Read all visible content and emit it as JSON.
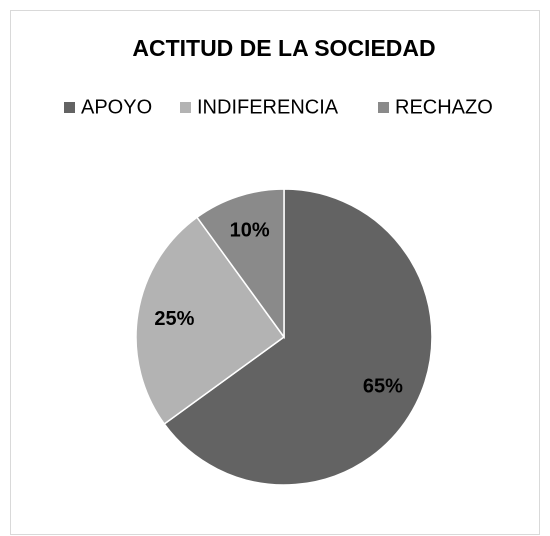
{
  "chart_data": {
    "type": "pie",
    "title": "ACTITUD DE LA SOCIEDAD",
    "categories": [
      "APOYO",
      "INDIFERENCIA",
      "RECHAZO"
    ],
    "values": [
      65,
      25,
      10
    ],
    "value_labels": [
      "65%",
      "25%",
      "10%"
    ],
    "colors": [
      "#636363",
      "#b3b3b3",
      "#8a8a8a"
    ],
    "legend": "top"
  }
}
